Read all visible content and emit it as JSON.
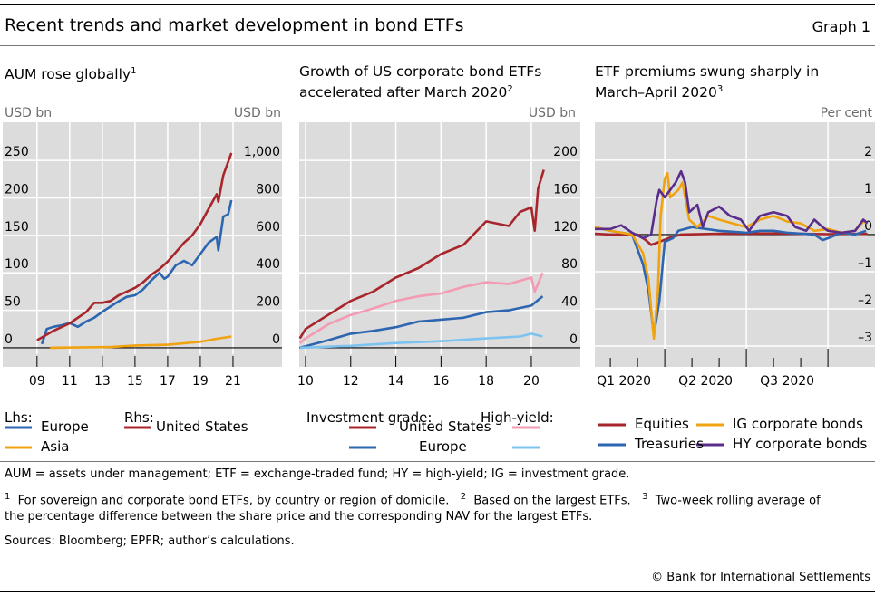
{
  "header": {
    "title": "Recent trends and market development in bond ETFs",
    "graph_label": "Graph 1"
  },
  "colors": {
    "bg": "#dcdcdc",
    "red": "#a8262b",
    "blue": "#2d66b0",
    "orange": "#f1a20f",
    "pink": "#f39bb2",
    "lightblue": "#7cc3ef",
    "purple": "#5a2c8b"
  },
  "chart_data": [
    {
      "type": "line",
      "title": "AUM rose globally",
      "title_note": "1",
      "ylabel_left": "USD bn",
      "ylabel_right": "USD bn",
      "xlim": [
        2006.9,
        2024.0
      ],
      "ylim": [
        -25.5,
        301
      ],
      "y2lim": [
        -102,
        1204
      ],
      "xticks": [
        2009,
        2011,
        2013,
        2015,
        2017,
        2019,
        2021
      ],
      "xtick_labels": [
        "09",
        "11",
        "13",
        "15",
        "17",
        "19",
        "21"
      ],
      "yticks": [
        0,
        50,
        100,
        150,
        200,
        250
      ],
      "y2ticks": [
        0,
        200,
        400,
        600,
        800,
        1000
      ],
      "y2tick_labels": [
        "0",
        "200",
        "400",
        "600",
        "800",
        "1,000"
      ],
      "legend": {
        "lhs_label": "Lhs:",
        "rhs_label": "Rhs:"
      },
      "series": [
        {
          "name": "Europe",
          "axis": "left",
          "color": "blue",
          "x": [
            2009.3,
            2009.6,
            2010,
            2010.5,
            2011,
            2011.5,
            2012,
            2012.5,
            2013,
            2013.5,
            2014,
            2014.5,
            2015,
            2015.5,
            2016,
            2016.5,
            2016.8,
            2017,
            2017.5,
            2018,
            2018.5,
            2019,
            2019.5,
            2020,
            2020.1,
            2020.4,
            2020.7,
            2020.9
          ],
          "y": [
            5,
            25,
            28,
            30,
            33,
            28,
            35,
            40,
            48,
            55,
            62,
            68,
            70,
            78,
            90,
            100,
            92,
            95,
            110,
            116,
            110,
            125,
            140,
            148,
            130,
            175,
            178,
            197
          ]
        },
        {
          "name": "Asia",
          "axis": "left",
          "color": "orange",
          "x": [
            2009.8,
            2013.5,
            2015,
            2017,
            2018,
            2019,
            2020,
            2020.9
          ],
          "y": [
            0,
            1,
            3,
            4,
            6,
            8,
            12,
            15
          ]
        },
        {
          "name": "United States",
          "axis": "right",
          "color": "red",
          "x": [
            2009,
            2010,
            2011,
            2012,
            2012.5,
            2013,
            2013.5,
            2014,
            2015,
            2015.5,
            2016,
            2016.5,
            2017,
            2017.5,
            2018,
            2018.5,
            2019,
            2019.5,
            2020,
            2020.1,
            2020.4,
            2020.9
          ],
          "y": [
            40,
            90,
            130,
            190,
            240,
            240,
            250,
            280,
            320,
            350,
            390,
            420,
            460,
            510,
            560,
            600,
            660,
            740,
            820,
            780,
            920,
            1040
          ]
        }
      ]
    },
    {
      "type": "line",
      "title": "Growth of US corporate bond ETFs accelerated after March 2020",
      "title_note": "2",
      "ylabel_right": "USD bn",
      "xlim": [
        2009.72,
        2022.17
      ],
      "ylim": [
        -20.4,
        240.8
      ],
      "xticks": [
        2010,
        2012,
        2014,
        2016,
        2018,
        2020
      ],
      "xtick_labels": [
        "10",
        "12",
        "14",
        "16",
        "18",
        "20"
      ],
      "yticks": [
        0,
        40,
        80,
        120,
        160,
        200
      ],
      "legend": {
        "ig_label": "Investment grade:",
        "hy_label": "High-yield:",
        "row_labels": [
          "United States",
          "Europe"
        ]
      },
      "series": [
        {
          "name": "Investment grade United States",
          "color": "red",
          "x": [
            2009.75,
            2010,
            2011,
            2012,
            2013,
            2014,
            2015,
            2016,
            2017,
            2018,
            2019,
            2019.5,
            2020,
            2020.15,
            2020.3,
            2020.55
          ],
          "y": [
            10,
            20,
            35,
            50,
            60,
            75,
            85,
            100,
            110,
            135,
            130,
            145,
            150,
            125,
            170,
            190
          ]
        },
        {
          "name": "Investment grade Europe",
          "color": "blue",
          "x": [
            2009.75,
            2011,
            2012,
            2013,
            2014,
            2015,
            2016,
            2017,
            2018,
            2019,
            2020,
            2020.5
          ],
          "y": [
            0,
            8,
            15,
            18,
            22,
            28,
            30,
            32,
            38,
            40,
            45,
            55
          ]
        },
        {
          "name": "High-yield United States",
          "color": "pink",
          "x": [
            2009.75,
            2010,
            2011,
            2012,
            2013,
            2014,
            2015,
            2016,
            2017,
            2018,
            2019,
            2020,
            2020.15,
            2020.5
          ],
          "y": [
            5,
            10,
            25,
            35,
            42,
            50,
            55,
            58,
            65,
            70,
            68,
            75,
            60,
            80
          ]
        },
        {
          "name": "High-yield Europe",
          "color": "lightblue",
          "x": [
            2009.75,
            2012,
            2014,
            2016,
            2018,
            2019.5,
            2020,
            2020.5
          ],
          "y": [
            0,
            2,
            5,
            7,
            10,
            12,
            15,
            12
          ]
        }
      ]
    },
    {
      "type": "line",
      "title": "ETF premiums swung sharply in March–April 2020",
      "title_note": "3",
      "ylabel_right": "Per cent",
      "x_unit": "months since 1 Jan 2020",
      "xlim": [
        0.43,
        10.73
      ],
      "ylim": [
        -3.56,
        3.02
      ],
      "xticks_minor": [
        1,
        2,
        4,
        5,
        7,
        8
      ],
      "xticks_major": [
        3,
        6,
        9
      ],
      "xtick_labels": [
        {
          "at": 1.5,
          "label": "Q1 2020"
        },
        {
          "at": 4.5,
          "label": "Q2 2020"
        },
        {
          "at": 7.5,
          "label": "Q3 2020"
        }
      ],
      "yticks": [
        -3,
        -2,
        -1,
        0,
        1,
        2
      ],
      "ytick_labels": [
        "–3",
        "–2",
        "–1",
        "0",
        "1",
        "2"
      ],
      "series": [
        {
          "name": "Equities",
          "color": "red",
          "x": [
            0.43,
            1,
            2,
            2.3,
            2.5,
            2.8,
            3.2,
            3.6,
            5,
            7,
            9,
            10.45
          ],
          "y": [
            0.02,
            0,
            0,
            -0.15,
            -0.28,
            -0.2,
            -0.08,
            0,
            0.02,
            0.03,
            0.01,
            0.02
          ]
        },
        {
          "name": "Treasuries",
          "color": "blue",
          "x": [
            0.43,
            1,
            1.8,
            2.2,
            2.4,
            2.6,
            2.8,
            3.0,
            3.3,
            3.5,
            4,
            5,
            6,
            6.5,
            7,
            7.5,
            8.5,
            8.8,
            9,
            9.5,
            10,
            10.4
          ],
          "y": [
            0.2,
            0.1,
            0,
            -0.8,
            -1.5,
            -2.7,
            -1.8,
            -0.2,
            -0.1,
            0.1,
            0.2,
            0.1,
            0.05,
            0.1,
            0.1,
            0.05,
            0,
            -0.15,
            -0.1,
            0.05,
            0,
            0.1
          ]
        },
        {
          "name": "IG corporate bonds",
          "color": "orange",
          "x": [
            0.43,
            1,
            1.8,
            2.2,
            2.4,
            2.6,
            2.75,
            2.85,
            3.0,
            3.1,
            3.2,
            3.5,
            3.65,
            3.9,
            4.2,
            4.4,
            4.6,
            5,
            5.5,
            6,
            6.5,
            7,
            7.5,
            8,
            8.5,
            9,
            9.5,
            10,
            10.3,
            10.45
          ],
          "y": [
            0.2,
            0.1,
            0,
            -0.5,
            -1.2,
            -2.8,
            -1.5,
            0.5,
            1.5,
            1.65,
            1.0,
            1.2,
            1.4,
            0.4,
            0.2,
            0.35,
            0.5,
            0.4,
            0.3,
            0.2,
            0.4,
            0.5,
            0.35,
            0.3,
            0.1,
            0.15,
            0.05,
            0.1,
            0.35,
            0.3
          ]
        },
        {
          "name": "HY corporate bonds",
          "color": "purple",
          "x": [
            0.43,
            1,
            1.4,
            1.8,
            2.2,
            2.5,
            2.7,
            2.8,
            3,
            3.2,
            3.4,
            3.6,
            3.75,
            3.9,
            4.2,
            4.4,
            4.6,
            5,
            5.4,
            5.8,
            6.1,
            6.5,
            7,
            7.5,
            7.8,
            8.2,
            8.5,
            8.8,
            9,
            9.5,
            10,
            10.3,
            10.45
          ],
          "y": [
            0.15,
            0.15,
            0.25,
            0.05,
            -0.1,
            0,
            0.9,
            1.2,
            1.0,
            1.2,
            1.4,
            1.7,
            1.4,
            0.6,
            0.8,
            0.2,
            0.6,
            0.75,
            0.5,
            0.4,
            0.1,
            0.5,
            0.6,
            0.5,
            0.2,
            0.1,
            0.4,
            0.2,
            0.1,
            0.05,
            0.1,
            0.4,
            0.3
          ]
        }
      ]
    }
  ],
  "notes": {
    "abbreviations": "AUM = assets under management; ETF = exchange-traded fund; HY = high-yield; IG = investment grade.",
    "footnote_1_num": "1",
    "footnote_1": "For sovereign and corporate bond ETFs, by country or region of domicile.",
    "footnote_2_num": "2",
    "footnote_2": "Based on the largest ETFs.",
    "footnote_3_num": "3",
    "footnote_3_line1": "Two-week rolling average of",
    "footnote_3_line2": "the percentage difference between the share price and the corresponding NAV for the largest ETFs.",
    "sources": "Sources: Bloomberg; EPFR; author’s calculations.",
    "copyright": "© Bank for International Settlements"
  }
}
